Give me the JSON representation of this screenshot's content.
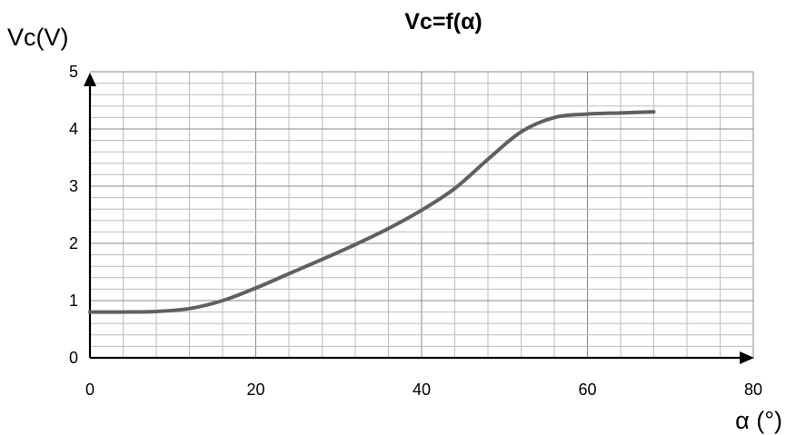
{
  "chart_data": {
    "type": "line",
    "title": "Vc=f(α)",
    "xlabel": "α (°)",
    "ylabel": "Vc(V)",
    "xlim": [
      0,
      80
    ],
    "ylim": [
      0,
      5
    ],
    "x_ticks": [
      "0",
      "20",
      "40",
      "60",
      "80"
    ],
    "y_ticks": [
      "0",
      "1",
      "2",
      "3",
      "4",
      "5"
    ],
    "grid": true,
    "legend": "none",
    "series": [
      {
        "color": "#606060",
        "x": [
          0,
          4,
          8,
          12,
          16,
          20,
          24,
          28,
          32,
          36,
          40,
          44,
          48,
          52,
          56,
          60,
          64,
          68
        ],
        "y": [
          0.8,
          0.8,
          0.81,
          0.86,
          1.0,
          1.22,
          1.47,
          1.72,
          1.98,
          2.26,
          2.58,
          2.96,
          3.47,
          3.95,
          4.2,
          4.26,
          4.28,
          4.3
        ]
      }
    ]
  }
}
